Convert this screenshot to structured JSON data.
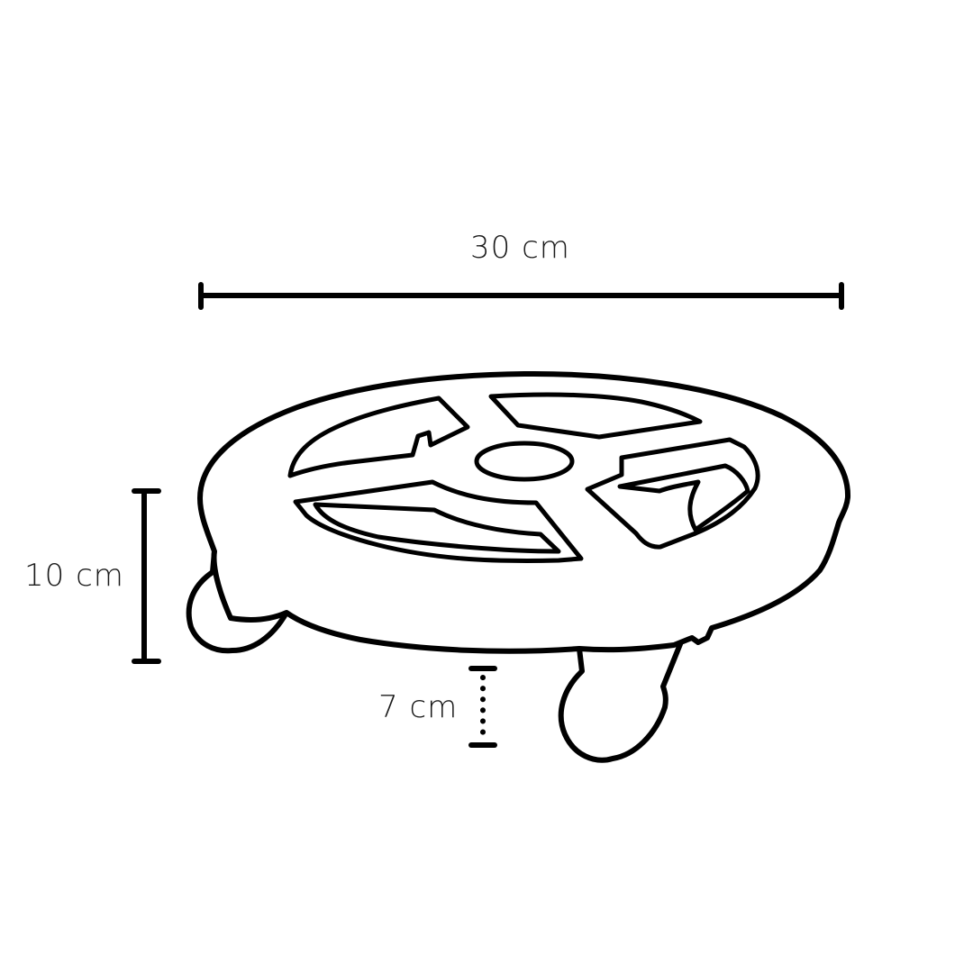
{
  "dimensions": {
    "width": "30 cm",
    "height": "10 cm",
    "foot_height": "7 cm"
  },
  "colors": {
    "stroke": "#000000",
    "background": "#ffffff"
  }
}
